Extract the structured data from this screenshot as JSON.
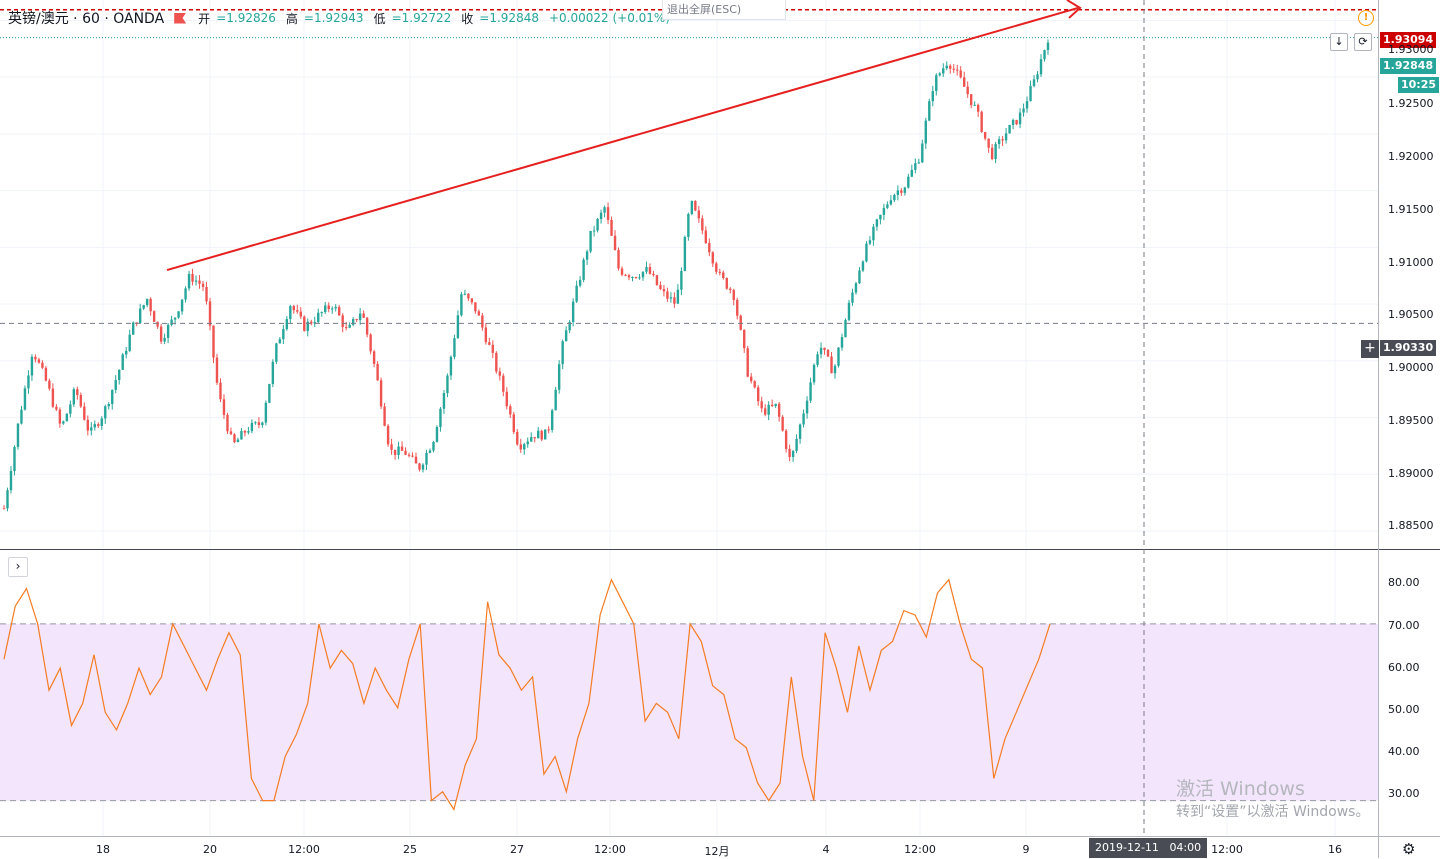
{
  "legend": {
    "symbol": "英镑/澳元 · 60 · OANDA",
    "open_label": "开",
    "open": "=1.92826",
    "high_label": "高",
    "high": "=1.92943",
    "low_label": "低",
    "low": "=1.92722",
    "close_label": "收",
    "close": "=1.92848",
    "change": "+0.00022 (+0.01%)"
  },
  "exit_fullscreen": "退出全屏(ESC)",
  "warning_icon": "warning-icon",
  "price_axis": {
    "labels": [
      "1.93000",
      "1.92500",
      "1.92000",
      "1.91500",
      "1.91000",
      "1.90500",
      "1.90000",
      "1.89500",
      "1.89000",
      "1.88500"
    ],
    "alert_price": "1.93094",
    "last_price": "1.92848",
    "countdown": "10:25",
    "crosshair_price": "1.90330"
  },
  "rsi_axis": {
    "labels": [
      "80.00",
      "70.00",
      "60.00",
      "50.00",
      "40.00",
      "30.00"
    ]
  },
  "time_axis": {
    "labels": [
      "18",
      "20",
      "12:00",
      "25",
      "27",
      "12:00",
      "12月",
      "4",
      "12:00",
      "9",
      "12:00",
      "16"
    ],
    "crosshair_time": "2019-12-11",
    "crosshair_clock": "04:00"
  },
  "watermark": {
    "line1": "激活 Windows",
    "line2": "转到“设置”以激活 Windows。"
  },
  "colors": {
    "up": "#26a69a",
    "down": "#ef5350",
    "alert": "#cc0000",
    "trend": "#e5201f",
    "rsi": "#f57c23",
    "rsi_band": "#f3e5fc"
  },
  "chart_data": {
    "type": "candlestick",
    "price": {
      "ylim": [
        1.8835,
        1.9318
      ],
      "last": 1.92848,
      "alert": 1.93094,
      "crosshair": 1.9033
    },
    "ohlc_anchors": [
      1.887,
      1.8945,
      1.901,
      1.898,
      1.894,
      1.8975,
      1.8935,
      1.8955,
      1.899,
      1.903,
      1.9055,
      1.902,
      1.904,
      1.9075,
      1.9065,
      1.897,
      1.8925,
      1.894,
      1.8945,
      1.901,
      1.905,
      1.903,
      1.904,
      1.905,
      1.9025,
      1.9045,
      1.899,
      1.892,
      1.892,
      1.8905,
      1.893,
      1.8985,
      1.906,
      1.9045,
      1.901,
      1.897,
      1.8925,
      1.8935,
      1.8935,
      1.901,
      1.906,
      1.911,
      1.9135,
      1.908,
      1.9075,
      1.908,
      1.906,
      1.905,
      1.914,
      1.911,
      1.9075,
      1.906,
      1.899,
      1.8955,
      1.896,
      1.891,
      1.896,
      1.9015,
      1.899,
      1.9045,
      1.909,
      1.912,
      1.9145,
      1.9155,
      1.918,
      1.9245,
      1.9265,
      1.9245,
      1.922,
      1.918,
      1.92,
      1.9215,
      1.9245,
      1.92848
    ],
    "trendline": {
      "from": [
        "18",
        1.908
      ],
      "to": [
        "9",
        1.9283
      ],
      "arrow_to": 1.9311
    },
    "rsi": {
      "ylim": [
        22,
        84
      ],
      "band": [
        30,
        70
      ],
      "values": [
        62,
        74,
        78,
        70,
        55,
        60,
        47,
        52,
        63,
        50,
        46,
        52,
        60,
        54,
        58,
        70,
        65,
        60,
        55,
        62,
        68,
        63,
        35,
        30,
        30,
        40,
        45,
        52,
        70,
        60,
        64,
        61,
        52,
        60,
        55,
        51,
        62,
        70,
        30,
        32,
        28,
        38,
        44,
        75,
        63,
        60,
        55,
        58,
        36,
        40,
        32,
        44,
        52,
        72,
        80,
        75,
        70,
        48,
        52,
        50,
        44,
        70,
        66,
        56,
        54,
        44,
        42,
        34,
        30,
        34,
        58,
        40,
        30,
        68,
        60,
        50,
        65,
        55,
        64,
        66,
        73,
        72,
        67,
        77,
        80,
        70,
        62,
        60,
        35,
        44,
        50,
        56,
        62,
        70
      ]
    }
  }
}
